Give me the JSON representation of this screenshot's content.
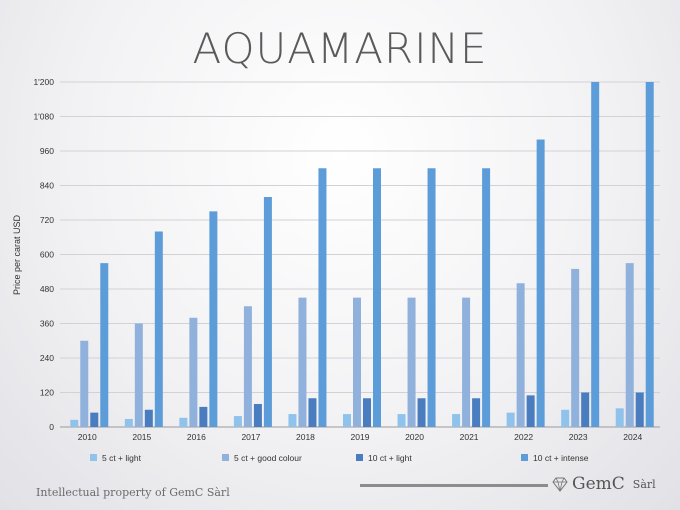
{
  "header": {
    "title": "AQUAMARINE"
  },
  "footer": {
    "ip_text": "Intellectual property of GemC Sàrl",
    "brand_name": "GemC",
    "brand_suffix": "Sàrl",
    "brand_icon": "gem-icon"
  },
  "chart_data": {
    "type": "bar",
    "title": "",
    "xlabel": "",
    "ylabel": "Price per carat USD",
    "ylim": [
      0,
      1200
    ],
    "yticks": [
      "0",
      "120",
      "240",
      "360",
      "480",
      "600",
      "720",
      "840",
      "960",
      "1'080",
      "1'200"
    ],
    "categories": [
      "2010",
      "2015",
      "2016",
      "2017",
      "2018",
      "2019",
      "2020",
      "2021",
      "2022",
      "2023",
      "2024"
    ],
    "grid": true,
    "legend_position": "bottom",
    "series": [
      {
        "name": "5 ct + light",
        "color": "#8fc3ec",
        "values": [
          25,
          28,
          32,
          38,
          45,
          45,
          45,
          45,
          50,
          60,
          65
        ]
      },
      {
        "name": "5 ct + good colour",
        "color": "#8fb1dc",
        "values": [
          300,
          360,
          380,
          420,
          450,
          450,
          450,
          450,
          500,
          550,
          570
        ]
      },
      {
        "name": "10 ct + light",
        "color": "#4a7cc0",
        "values": [
          50,
          60,
          70,
          80,
          100,
          100,
          100,
          100,
          110,
          120,
          120
        ]
      },
      {
        "name": "10 ct + intense",
        "color": "#5c9dd9",
        "values": [
          570,
          680,
          750,
          800,
          900,
          900,
          900,
          900,
          1000,
          1200,
          1200
        ]
      }
    ]
  }
}
